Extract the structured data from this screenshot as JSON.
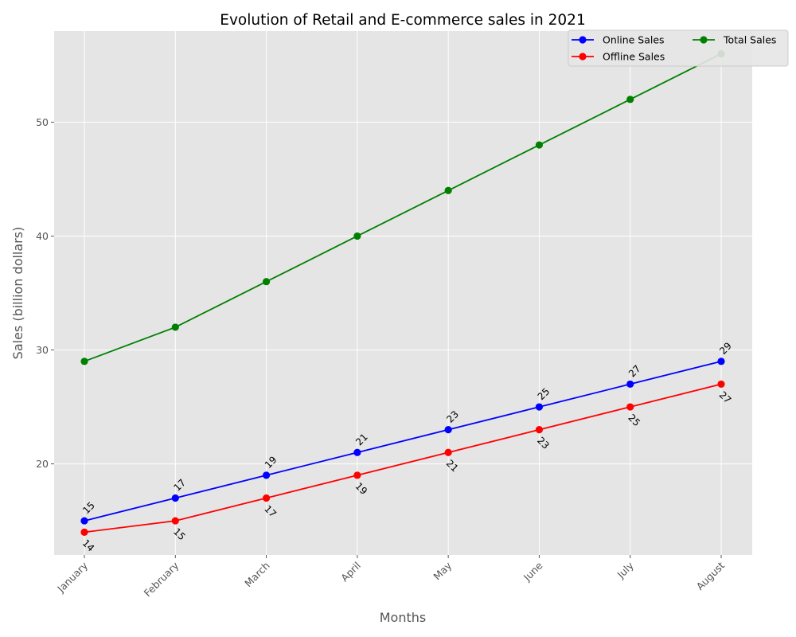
{
  "chart_data": {
    "type": "line",
    "title": "Evolution of Retail and E-commerce sales in 2021",
    "xlabel": "Months",
    "ylabel": "Sales (billion dollars)",
    "categories": [
      "January",
      "February",
      "March",
      "April",
      "May",
      "June",
      "July",
      "August"
    ],
    "ylim": [
      12,
      58
    ],
    "yticks": [
      20,
      30,
      40,
      50
    ],
    "grid": true,
    "legend": "top-right",
    "background": "#e5e5e5",
    "series": [
      {
        "name": "Online Sales",
        "color": "#0000ff",
        "values": [
          15,
          17,
          19,
          21,
          23,
          25,
          27,
          29
        ],
        "labels": [
          "15",
          "17",
          "19",
          "21",
          "23",
          "25",
          "27",
          "29"
        ]
      },
      {
        "name": "Offline Sales",
        "color": "#ff0000",
        "values": [
          14,
          15,
          17,
          19,
          21,
          23,
          25,
          27
        ],
        "labels": [
          "14",
          "15",
          "17",
          "19",
          "21",
          "23",
          "25",
          "27"
        ]
      },
      {
        "name": "Total Sales",
        "color": "#008000",
        "values": [
          29,
          32,
          36,
          40,
          44,
          48,
          52,
          56
        ]
      }
    ]
  }
}
